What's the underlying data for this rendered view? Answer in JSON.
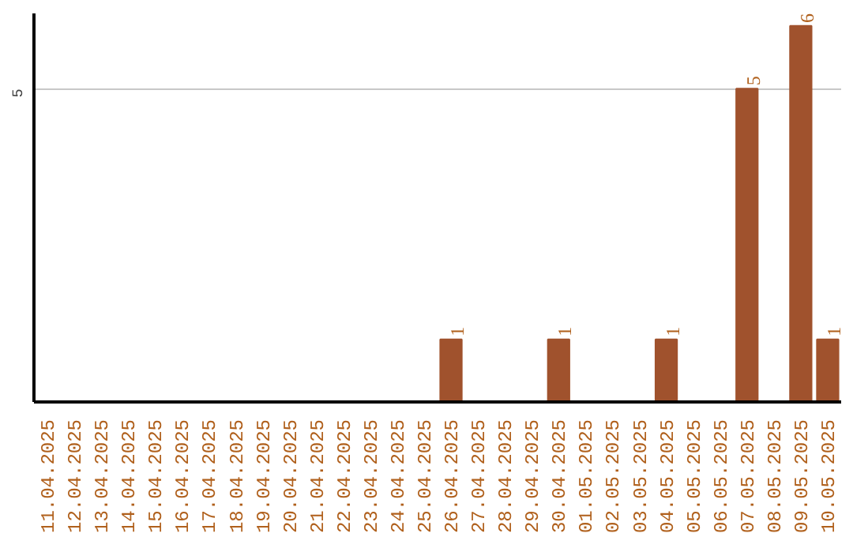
{
  "chart_data": {
    "type": "bar",
    "categories": [
      "11.04.2025",
      "12.04.2025",
      "13.04.2025",
      "14.04.2025",
      "15.04.2025",
      "16.04.2025",
      "17.04.2025",
      "18.04.2025",
      "19.04.2025",
      "20.04.2025",
      "21.04.2025",
      "22.04.2025",
      "23.04.2025",
      "24.04.2025",
      "25.04.2025",
      "26.04.2025",
      "27.04.2025",
      "28.04.2025",
      "29.04.2025",
      "30.04.2025",
      "01.05.2025",
      "02.05.2025",
      "03.05.2025",
      "04.05.2025",
      "05.05.2025",
      "06.05.2025",
      "07.05.2025",
      "08.05.2025",
      "09.05.2025",
      "10.05.2025"
    ],
    "values": [
      null,
      null,
      null,
      null,
      null,
      null,
      null,
      null,
      null,
      null,
      null,
      null,
      null,
      null,
      null,
      1,
      null,
      null,
      null,
      1,
      null,
      null,
      null,
      1,
      null,
      null,
      5,
      null,
      6,
      1
    ],
    "color": "#a0522d",
    "ylim": [
      0,
      6.2
    ],
    "yticks": [
      5
    ],
    "grid": "y",
    "data_labels": true
  }
}
